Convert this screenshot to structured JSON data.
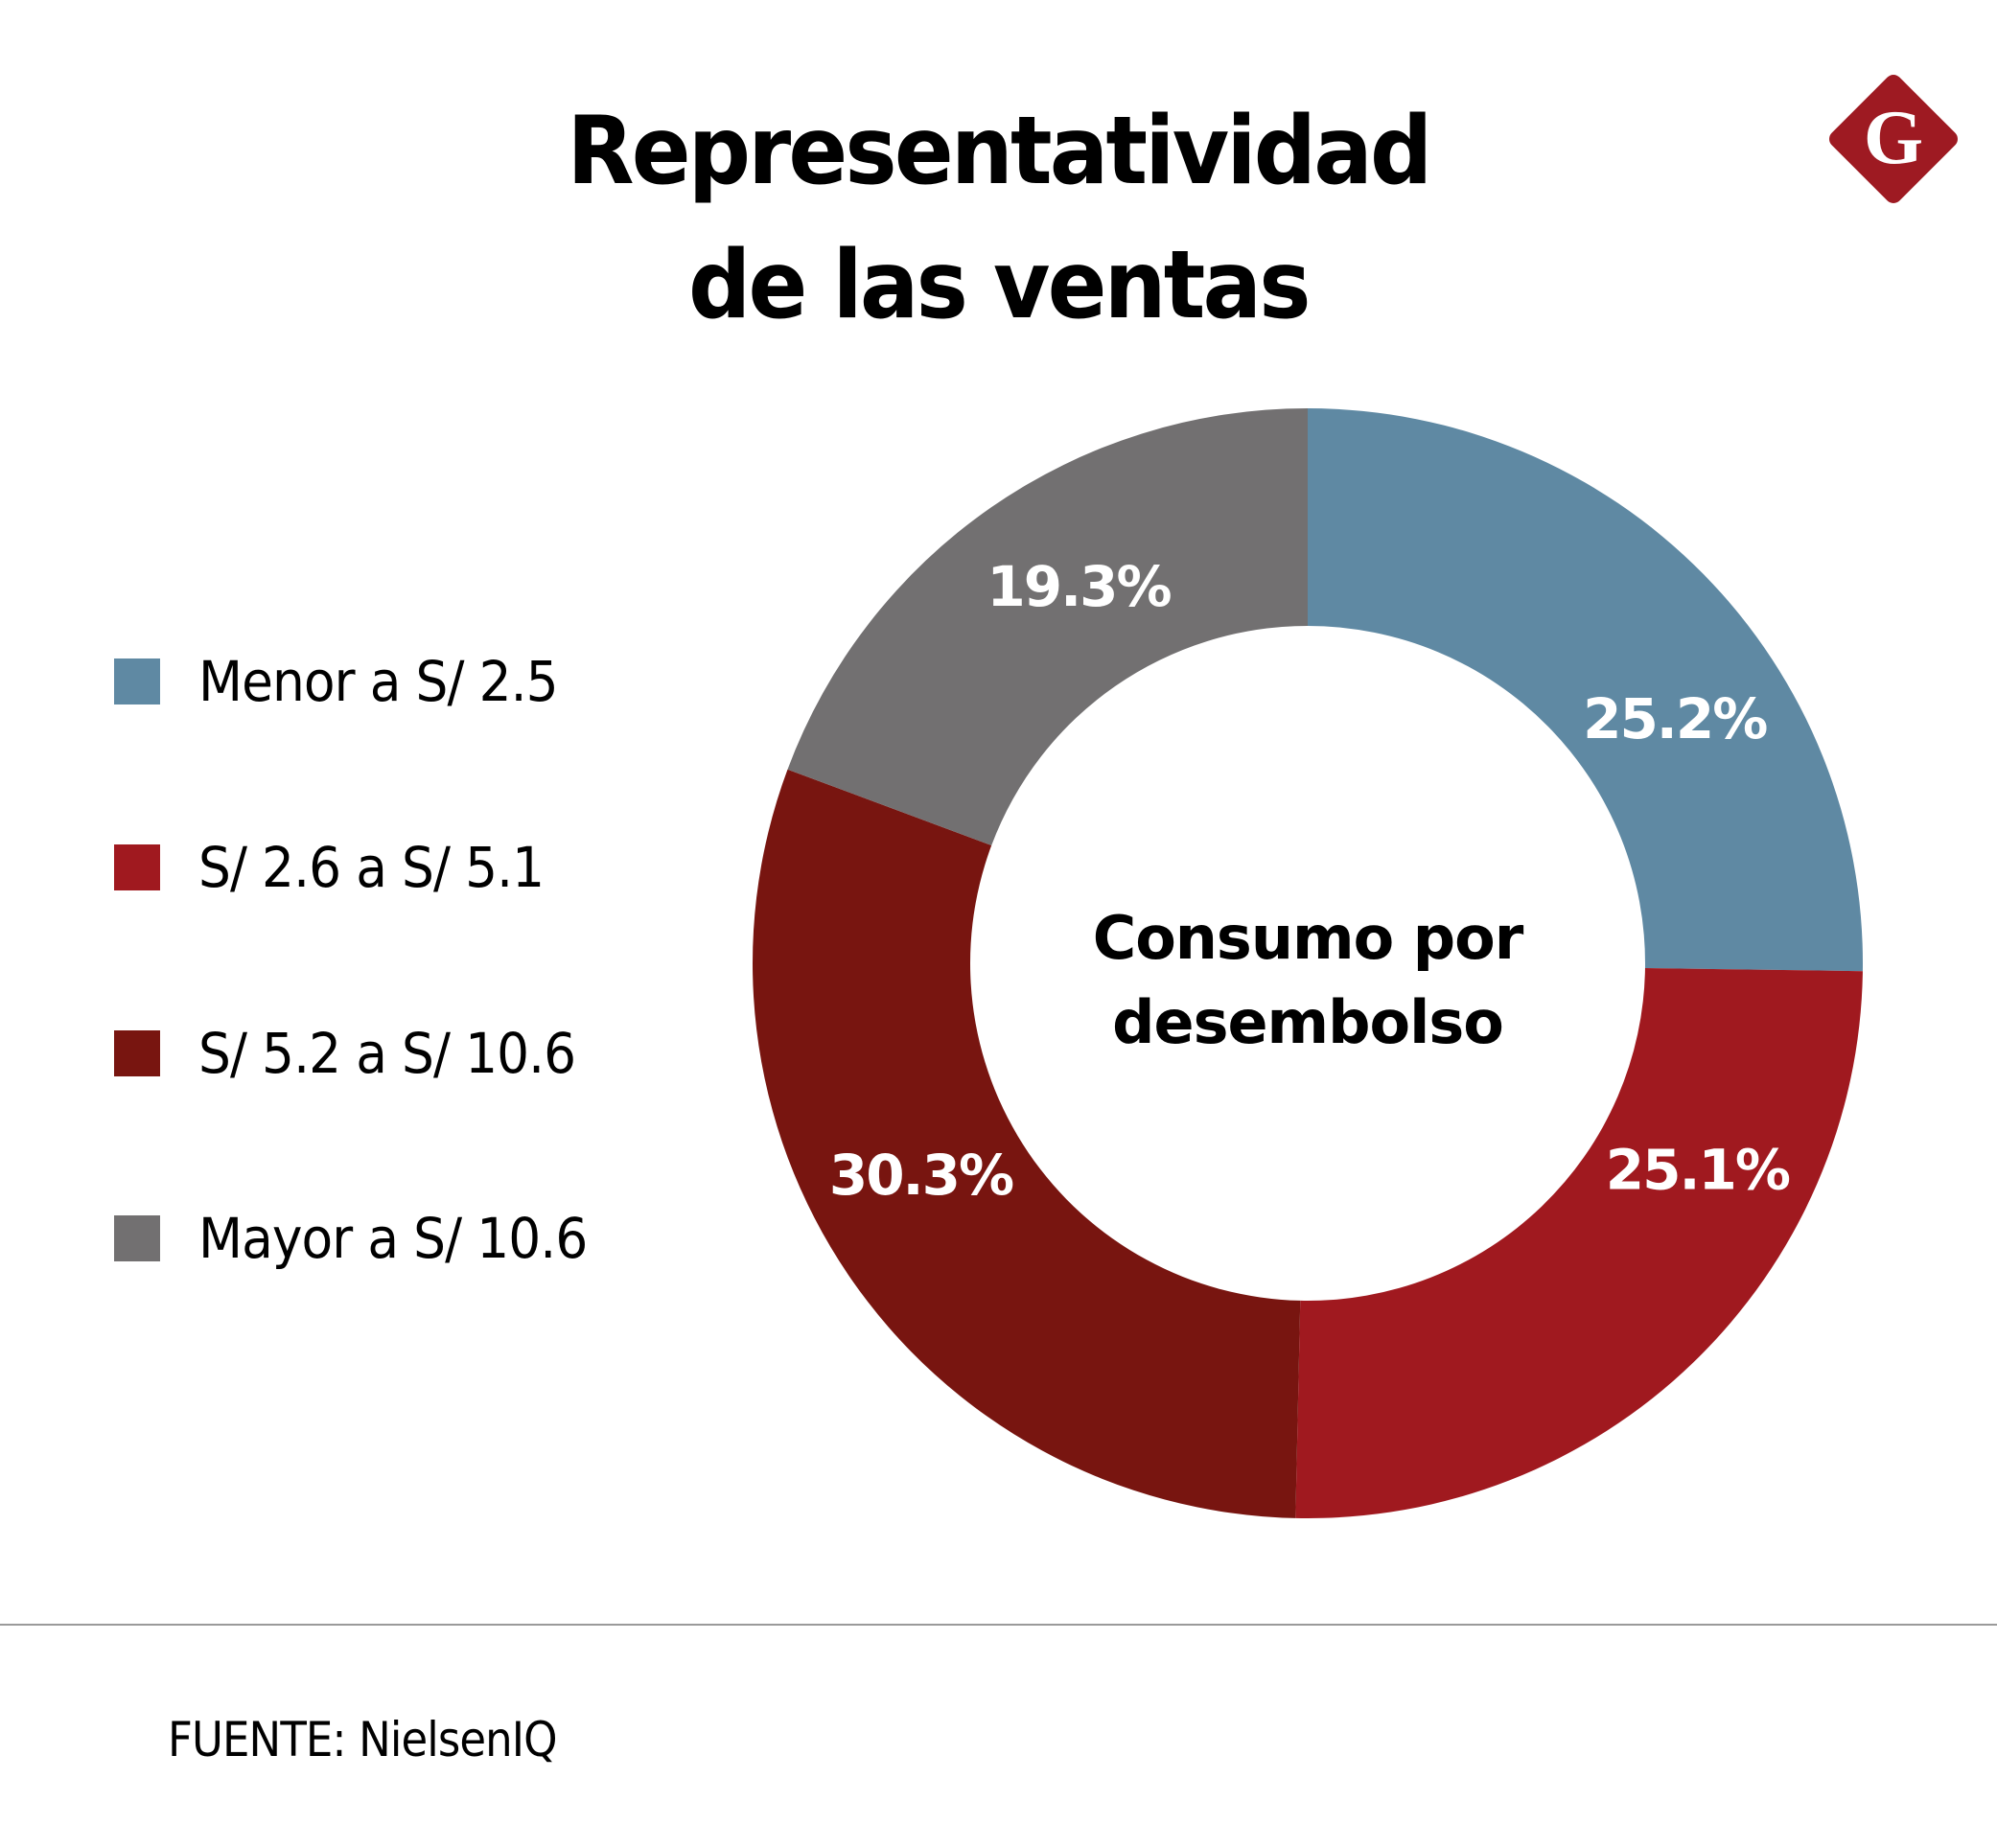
{
  "header": {
    "title_line1": "Representatividad",
    "title_line2": "de las ventas",
    "logo_letter": "G",
    "logo_color": "#9e1a22"
  },
  "legend": {
    "items": [
      {
        "label": "Menor a S/ 2.5",
        "color": "#5f89a3"
      },
      {
        "label": "S/ 2.6 a  S/ 5.1",
        "color": "#a0191f"
      },
      {
        "label": "S/ 5.2 a S/ 10.6",
        "color": "#781510"
      },
      {
        "label": "Mayor a S/ 10.6",
        "color": "#727071"
      }
    ]
  },
  "chart_data": {
    "type": "pie",
    "subtype": "donut",
    "title": "Representatividad de las ventas",
    "center_label": [
      "Consumo por",
      "desembolso"
    ],
    "legend_position": "left",
    "start": "top",
    "direction": "clockwise",
    "slices": [
      {
        "name": "Menor a S/ 2.5",
        "value": 25.2,
        "label": "25.2%",
        "color": "#5f89a3"
      },
      {
        "name": "S/ 2.6 a  S/ 5.1",
        "value": 25.1,
        "label": "25.1%",
        "color": "#a0191f"
      },
      {
        "name": "S/ 5.2 a S/ 10.6",
        "value": 30.3,
        "label": "30.3%",
        "color": "#781510"
      },
      {
        "name": "Mayor a S/ 10.6",
        "value": 19.3,
        "label": "19.3%",
        "color": "#727071"
      }
    ]
  },
  "footer": {
    "source": "FUENTE: NielsenIQ"
  }
}
